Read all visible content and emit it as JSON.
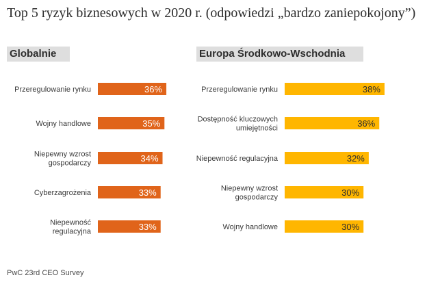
{
  "title": "Top 5 ryzyk biznesowych w 2020 r. (odpowiedzi „bardzo zaniepokojony”)",
  "source": "PwC 23rd CEO Survey",
  "colors": {
    "global_bar": "#e0641a",
    "cee_bar": "#ffb600",
    "label_text": "#3a3a3a"
  },
  "chart_data": [
    {
      "type": "bar",
      "orientation": "horizontal",
      "title": "Globalnie",
      "categories": [
        [
          "Przeregulowanie rynku"
        ],
        [
          "Wojny handlowe"
        ],
        [
          "Niepewny wzrost",
          "gospodarczy"
        ],
        [
          "Cyberzagrożenia"
        ],
        [
          "Niepewność",
          "regulacyjna"
        ]
      ],
      "values": [
        36,
        35,
        34,
        33,
        33
      ],
      "value_labels": [
        "36%",
        "35%",
        "34%",
        "33%",
        "33%"
      ],
      "unit": "%"
    },
    {
      "type": "bar",
      "orientation": "horizontal",
      "title": "Europa Środkowo-Wschodnia",
      "categories": [
        [
          "Przeregulowanie rynku"
        ],
        [
          "Dostępność kluczowych",
          "umiejętności"
        ],
        [
          "Niepewność regulacyjna"
        ],
        [
          "Niepewny wzrost",
          "gospodarczy"
        ],
        [
          "Wojny handlowe"
        ]
      ],
      "values": [
        38,
        36,
        32,
        30,
        30
      ],
      "value_labels": [
        "38%",
        "36%",
        "32%",
        "30%",
        "30%"
      ],
      "unit": "%"
    }
  ]
}
